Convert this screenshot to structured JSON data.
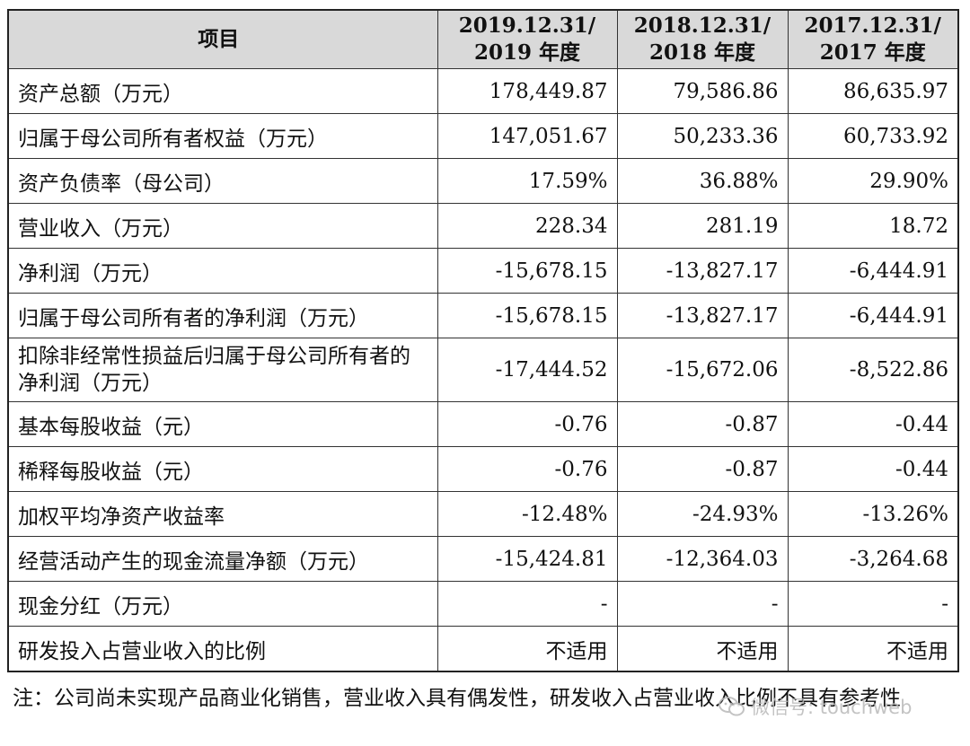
{
  "table": {
    "header": [
      "项目",
      "2019.12.31/\n2019 年度",
      "2018.12.31/\n2018 年度",
      "2017.12.31/\n2017 年度"
    ],
    "rows": [
      {
        "label": "资产总额（万元）",
        "values": [
          "178,449.87",
          "79,586.86",
          "86,635.97"
        ]
      },
      {
        "label": "归属于母公司所有者权益（万元）",
        "values": [
          "147,051.67",
          "50,233.36",
          "60,733.92"
        ]
      },
      {
        "label": "资产负债率（母公司）",
        "values": [
          "17.59%",
          "36.88%",
          "29.90%"
        ]
      },
      {
        "label": "营业收入（万元）",
        "values": [
          "228.34",
          "281.19",
          "18.72"
        ]
      },
      {
        "label": "净利润（万元）",
        "values": [
          "-15,678.15",
          "-13,827.17",
          "-6,444.91"
        ]
      },
      {
        "label": "归属于母公司所有者的净利润（万元）",
        "values": [
          "-15,678.15",
          "-13,827.17",
          "-6,444.91"
        ]
      },
      {
        "label": "扣除非经常性损益后归属于母公司所有者的净利润（万元）",
        "values": [
          "-17,444.52",
          "-15,672.06",
          "-8,522.86"
        ]
      },
      {
        "label": "基本每股收益（元）",
        "values": [
          "-0.76",
          "-0.87",
          "-0.44"
        ]
      },
      {
        "label": "稀释每股收益（元）",
        "values": [
          "-0.76",
          "-0.87",
          "-0.44"
        ]
      },
      {
        "label": "加权平均净资产收益率",
        "values": [
          "-12.48%",
          "-24.93%",
          "-13.26%"
        ]
      },
      {
        "label": "经营活动产生的现金流量净额（万元）",
        "values": [
          "-15,424.81",
          "-12,364.03",
          "-3,264.68"
        ]
      },
      {
        "label": "现金分红（万元）",
        "values": [
          "-",
          "-",
          "-"
        ]
      },
      {
        "label": "研发投入占营业收入的比例",
        "values": [
          "不适用",
          "不适用",
          "不适用"
        ]
      }
    ]
  },
  "note": "注：公司尚未实现产品商业化销售，营业收入具有偶发性，研发收入占营业收入比例不具有参考性",
  "watermark": "微信号: touchweb",
  "colors": {
    "header_bg": "#d9d9d9",
    "border": "#333333",
    "watermark": "#b9b9b9"
  }
}
